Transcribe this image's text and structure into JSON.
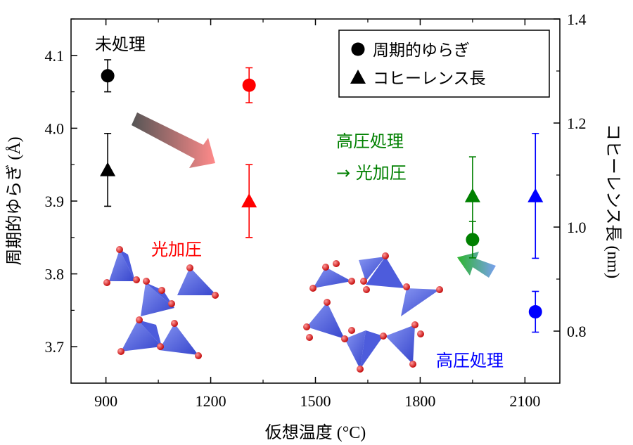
{
  "chart_data": {
    "type": "scatter",
    "xlabel": "仮想温度",
    "xlabel_unit": "(°C)",
    "ylabel_left": "周期的ゆらぎ",
    "ylabel_left_unit": "(Å)",
    "ylabel_right": "コヒーレンス長",
    "ylabel_right_unit": "(nm)",
    "xlim": [
      800,
      2200
    ],
    "ylim_left": [
      3.65,
      4.15
    ],
    "ylim_right": [
      0.7,
      1.4
    ],
    "x_ticks": [
      "900",
      "1200",
      "1500",
      "1800",
      "2100"
    ],
    "x_tick_values": [
      900,
      1200,
      1500,
      1800,
      2100
    ],
    "y_left_ticks": [
      "3.7",
      "3.8",
      "3.9",
      "4.0",
      "4.1"
    ],
    "y_left_tick_values": [
      3.7,
      3.8,
      3.9,
      4.0,
      4.1
    ],
    "y_right_ticks": [
      "0.8",
      "1.0",
      "1.2",
      "1.4"
    ],
    "y_right_tick_values": [
      0.8,
      1.0,
      1.2,
      1.4
    ],
    "legend": {
      "position": "top-right",
      "items": [
        {
          "marker": "circle",
          "label": "周期的ゆらぎ"
        },
        {
          "marker": "triangle",
          "label": "コヒーレンス長"
        }
      ]
    },
    "series": [
      {
        "marker": "circle",
        "axis": "left",
        "points": [
          {
            "x": 905,
            "y": 4.072,
            "err": 0.022,
            "color": "#000000"
          },
          {
            "x": 1310,
            "y": 4.059,
            "err": 0.024,
            "color": "#ff0000"
          },
          {
            "x": 1950,
            "y": 3.847,
            "err": 0.025,
            "color": "#008000"
          },
          {
            "x": 2130,
            "y": 3.748,
            "err": 0.028,
            "color": "#0000ff"
          }
        ]
      },
      {
        "marker": "triangle",
        "axis": "right",
        "points": [
          {
            "x": 905,
            "y": 1.11,
            "err": 0.07,
            "color": "#000000"
          },
          {
            "x": 1310,
            "y": 1.05,
            "err": 0.07,
            "color": "#ff0000"
          },
          {
            "x": 1950,
            "y": 1.06,
            "err": 0.075,
            "color": "#008000"
          },
          {
            "x": 2130,
            "y": 1.06,
            "err": 0.12,
            "color": "#0000ff"
          }
        ]
      }
    ],
    "annotations": [
      {
        "text": "未処理",
        "color": "#000000"
      },
      {
        "text": "光加圧",
        "color": "#ff0000"
      },
      {
        "text": "高圧処理",
        "color": "#008000"
      },
      {
        "text": "→ 光加圧",
        "color": "#008000"
      },
      {
        "text": "高圧処理",
        "color": "#0000ff"
      }
    ]
  }
}
